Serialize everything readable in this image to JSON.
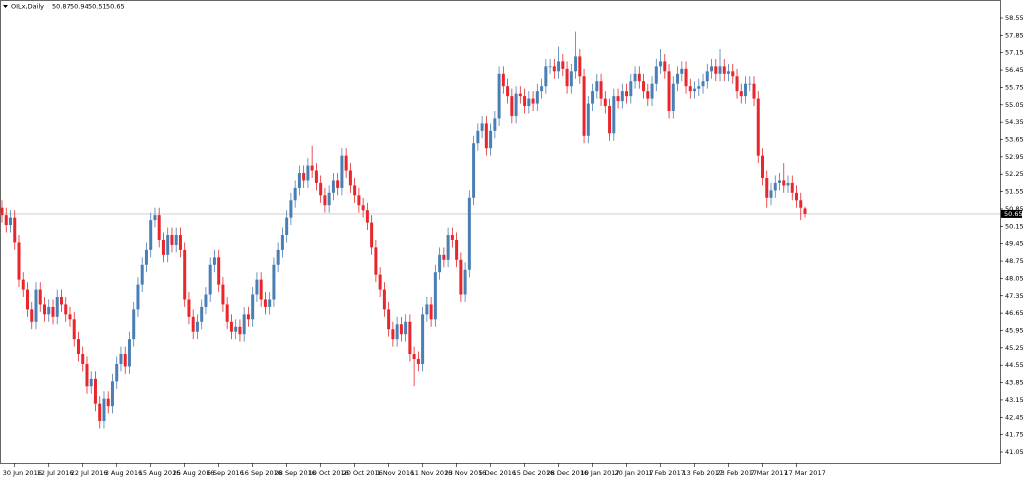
{
  "chart_data": {
    "type": "candlestick",
    "title": "OILx,Daily",
    "categories": [
      null,
      null,
      null,
      "30 Jun 2016",
      null,
      null,
      null,
      null,
      null,
      null,
      null,
      "12 Jul 2016",
      null,
      null,
      null,
      null,
      null,
      null,
      null,
      "22 Jul 2016",
      null,
      null,
      null,
      null,
      null,
      null,
      null,
      "3 Aug 2016",
      null,
      null,
      null,
      null,
      null,
      null,
      null,
      "15 Aug 2016",
      null,
      null,
      null,
      null,
      null,
      null,
      null,
      "25 Aug 2016",
      null,
      null,
      null,
      null,
      null,
      null,
      null,
      "6 Sep 2016",
      null,
      null,
      null,
      null,
      null,
      null,
      null,
      "16 Sep 2016",
      null,
      null,
      null,
      null,
      null,
      null,
      null,
      "28 Sep 2016",
      null,
      null,
      null,
      null,
      null,
      null,
      null,
      "10 Oct 2016",
      null,
      null,
      null,
      null,
      null,
      null,
      null,
      "20 Oct 2016",
      null,
      null,
      null,
      null,
      null,
      null,
      null,
      "1 Nov 2016",
      null,
      null,
      null,
      null,
      null,
      null,
      null,
      "11 Nov 2016",
      null,
      null,
      null,
      null,
      null,
      null,
      null,
      "23 Nov 2016",
      null,
      null,
      null,
      null,
      null,
      null,
      null,
      "5 Dec 2016",
      null,
      null,
      null,
      null,
      null,
      null,
      null,
      "15 Dec 2016",
      null,
      null,
      null,
      null,
      null,
      null,
      null,
      "28 Dec 2016",
      null,
      null,
      null,
      null,
      null,
      null,
      null,
      "10 Jan 2017",
      null,
      null,
      null,
      null,
      null,
      null,
      null,
      "20 Jan 2017",
      null,
      null,
      null,
      null,
      null,
      null,
      null,
      "1 Feb 2017",
      null,
      null,
      null,
      null,
      null,
      null,
      null,
      "13 Feb 2017",
      null,
      null,
      null,
      null,
      null,
      null,
      null,
      "23 Feb 2017",
      null,
      null,
      null,
      null,
      null,
      null,
      null,
      "7 Mar 2017",
      null,
      null,
      null,
      null,
      null,
      null,
      null,
      "17 Mar 2017",
      null,
      null
    ],
    "open": [
      50.9,
      50.6,
      50.2,
      50.5,
      49.5,
      48.0,
      47.6,
      46.8,
      46.3,
      47.6,
      47.0,
      46.6,
      46.9,
      46.5,
      47.3,
      47.0,
      46.6,
      46.4,
      45.6,
      45.0,
      44.6,
      43.7,
      44.0,
      43.0,
      42.3,
      43.2,
      42.9,
      43.9,
      44.6,
      45.0,
      44.5,
      45.6,
      46.8,
      47.8,
      48.6,
      49.2,
      50.4,
      50.6,
      49.6,
      49.0,
      49.8,
      49.4,
      49.8,
      49.2,
      47.2,
      46.5,
      45.9,
      46.3,
      46.9,
      47.4,
      48.6,
      48.9,
      47.8,
      47.0,
      46.3,
      45.9,
      46.1,
      45.8,
      46.6,
      46.4,
      47.4,
      48.0,
      47.2,
      46.9,
      47.2,
      48.6,
      49.2,
      49.8,
      50.5,
      51.2,
      51.7,
      52.3,
      52.0,
      52.6,
      52.4,
      51.9,
      51.4,
      51.0,
      51.5,
      52.0,
      51.7,
      53.0,
      52.4,
      51.8,
      51.4,
      51.0,
      50.8,
      50.3,
      49.3,
      48.2,
      47.6,
      46.8,
      46.0,
      45.6,
      46.2,
      45.8,
      46.3,
      45.0,
      44.8,
      44.6,
      46.6,
      47.0,
      46.4,
      48.3,
      49.0,
      48.8,
      49.8,
      49.6,
      48.8,
      47.4,
      48.4,
      51.3,
      53.5,
      54.0,
      54.3,
      53.3,
      54.0,
      54.5,
      56.3,
      55.8,
      55.4,
      54.6,
      55.5,
      55.4,
      55.0,
      55.3,
      55.1,
      55.6,
      55.8,
      56.6,
      56.6,
      56.4,
      56.8,
      56.5,
      55.8,
      56.4,
      57.0,
      56.2,
      53.8,
      55.1,
      55.6,
      56.0,
      55.3,
      55.0,
      53.9,
      55.4,
      55.2,
      55.6,
      55.4,
      56.0,
      56.3,
      56.0,
      55.6,
      55.3,
      55.9,
      56.6,
      56.8,
      56.4,
      54.8,
      55.9,
      56.3,
      56.5,
      55.8,
      55.6,
      55.7,
      55.8,
      56.0,
      56.4,
      56.6,
      56.3,
      56.6,
      56.3,
      56.4,
      56.2,
      55.6,
      55.4,
      55.9,
      55.9,
      55.3,
      53.0,
      52.1,
      51.3,
      51.6,
      51.9,
      52.0,
      51.8,
      51.9,
      51.5,
      51.2,
      50.87
    ],
    "high": [
      51.2,
      50.9,
      50.8,
      50.8,
      49.8,
      48.3,
      47.9,
      47.1,
      47.9,
      47.9,
      47.3,
      47.2,
      47.2,
      47.6,
      47.6,
      47.3,
      46.9,
      46.7,
      45.9,
      45.3,
      44.9,
      44.3,
      44.3,
      43.3,
      43.5,
      43.5,
      44.2,
      44.9,
      45.3,
      45.3,
      45.9,
      47.1,
      48.1,
      48.9,
      49.5,
      50.7,
      50.9,
      50.9,
      49.9,
      50.1,
      50.1,
      50.1,
      50.1,
      49.5,
      47.5,
      46.8,
      46.6,
      47.2,
      47.7,
      48.9,
      49.2,
      49.2,
      48.1,
      47.3,
      46.6,
      46.4,
      46.4,
      46.9,
      46.9,
      47.7,
      48.3,
      48.3,
      47.5,
      47.5,
      48.9,
      49.5,
      50.1,
      50.8,
      51.5,
      52.0,
      52.6,
      52.6,
      52.9,
      53.4,
      52.7,
      52.2,
      51.7,
      51.8,
      52.3,
      52.3,
      53.3,
      53.3,
      52.7,
      52.1,
      51.7,
      51.3,
      51.1,
      50.6,
      49.6,
      48.5,
      47.9,
      47.1,
      46.3,
      46.5,
      46.5,
      46.6,
      46.6,
      45.3,
      45.1,
      46.9,
      47.3,
      47.3,
      48.6,
      49.3,
      49.3,
      50.1,
      50.1,
      49.9,
      49.1,
      48.7,
      51.6,
      53.8,
      54.3,
      54.6,
      54.6,
      54.3,
      54.8,
      56.6,
      56.6,
      56.1,
      55.7,
      55.8,
      55.8,
      55.7,
      55.6,
      55.6,
      55.9,
      56.1,
      56.9,
      56.9,
      56.9,
      57.4,
      57.1,
      56.8,
      56.7,
      58.0,
      57.3,
      56.5,
      55.4,
      55.9,
      56.3,
      56.3,
      55.6,
      55.3,
      55.7,
      55.7,
      55.9,
      55.9,
      56.3,
      56.6,
      56.6,
      56.3,
      55.9,
      56.2,
      56.9,
      57.3,
      57.1,
      56.7,
      56.2,
      56.6,
      56.8,
      56.8,
      56.1,
      56.0,
      56.1,
      56.3,
      56.7,
      56.9,
      56.9,
      57.3,
      56.9,
      56.7,
      56.7,
      56.5,
      55.9,
      56.2,
      56.2,
      56.2,
      55.6,
      53.3,
      52.4,
      51.9,
      52.2,
      52.3,
      52.7,
      52.2,
      52.2,
      51.8,
      51.5,
      50.94
    ],
    "low": [
      50.3,
      49.9,
      49.9,
      49.2,
      47.7,
      47.3,
      46.5,
      46.0,
      46.0,
      46.7,
      46.3,
      46.3,
      46.2,
      46.2,
      46.7,
      46.3,
      46.1,
      45.3,
      44.7,
      44.3,
      43.4,
      43.4,
      42.7,
      42.0,
      42.0,
      42.6,
      42.6,
      43.6,
      44.3,
      44.2,
      44.2,
      45.3,
      46.5,
      47.5,
      48.3,
      48.9,
      50.1,
      49.3,
      48.7,
      48.7,
      49.1,
      49.1,
      48.9,
      46.9,
      46.2,
      45.6,
      45.6,
      46.0,
      46.6,
      47.1,
      48.3,
      47.5,
      46.7,
      46.0,
      45.6,
      45.6,
      45.5,
      45.5,
      46.1,
      46.1,
      47.1,
      46.9,
      46.6,
      46.6,
      46.9,
      48.3,
      48.9,
      49.5,
      50.2,
      50.9,
      51.4,
      51.7,
      51.7,
      52.1,
      51.6,
      51.1,
      50.7,
      50.7,
      51.2,
      51.4,
      51.4,
      52.1,
      51.5,
      51.1,
      50.7,
      50.5,
      50.0,
      49.0,
      47.9,
      47.3,
      46.5,
      45.7,
      45.3,
      45.3,
      45.5,
      45.5,
      44.7,
      43.7,
      44.3,
      44.3,
      46.3,
      46.1,
      46.1,
      48.0,
      48.5,
      48.5,
      49.3,
      48.5,
      47.1,
      47.1,
      48.1,
      51.0,
      53.2,
      53.7,
      53.0,
      53.0,
      53.7,
      54.2,
      55.5,
      55.1,
      54.3,
      54.3,
      55.1,
      54.7,
      54.7,
      54.8,
      54.8,
      55.3,
      55.5,
      56.3,
      56.1,
      56.1,
      56.2,
      55.5,
      55.5,
      56.1,
      55.9,
      53.5,
      53.5,
      54.8,
      55.3,
      55.0,
      54.7,
      53.6,
      53.6,
      54.9,
      54.9,
      55.1,
      55.1,
      55.7,
      55.7,
      55.3,
      55.0,
      55.0,
      55.6,
      56.3,
      56.1,
      54.5,
      54.5,
      55.6,
      56.0,
      55.5,
      55.3,
      55.3,
      55.4,
      55.5,
      55.7,
      56.1,
      56.0,
      56.0,
      56.0,
      56.0,
      55.9,
      55.3,
      55.1,
      55.1,
      55.6,
      55.0,
      52.7,
      51.8,
      50.9,
      51.0,
      51.3,
      51.6,
      51.5,
      51.5,
      51.2,
      50.9,
      50.4,
      50.51
    ],
    "close": [
      50.6,
      50.2,
      50.5,
      49.5,
      48.0,
      47.6,
      46.8,
      46.3,
      47.6,
      47.0,
      46.6,
      46.9,
      46.5,
      47.3,
      47.0,
      46.6,
      46.4,
      45.6,
      45.0,
      44.6,
      43.7,
      44.0,
      43.0,
      42.3,
      43.2,
      42.9,
      43.9,
      44.6,
      45.0,
      44.5,
      45.6,
      46.8,
      47.8,
      48.6,
      49.2,
      50.4,
      50.6,
      49.6,
      49.0,
      49.8,
      49.4,
      49.8,
      49.2,
      47.2,
      46.5,
      45.9,
      46.3,
      46.9,
      47.4,
      48.6,
      48.9,
      47.8,
      47.0,
      46.3,
      45.9,
      46.1,
      45.8,
      46.6,
      46.4,
      47.4,
      48.0,
      47.2,
      46.9,
      47.2,
      48.6,
      49.2,
      49.8,
      50.5,
      51.2,
      51.7,
      52.3,
      52.0,
      52.6,
      52.4,
      51.9,
      51.4,
      51.0,
      51.5,
      52.0,
      51.7,
      53.0,
      52.4,
      51.8,
      51.4,
      51.0,
      50.8,
      50.3,
      49.3,
      48.2,
      47.6,
      46.8,
      46.0,
      45.6,
      46.2,
      45.8,
      46.3,
      45.0,
      44.8,
      44.6,
      46.6,
      47.0,
      46.4,
      48.3,
      49.0,
      48.8,
      49.8,
      49.6,
      48.8,
      47.4,
      48.4,
      51.3,
      53.5,
      54.0,
      54.3,
      53.3,
      54.0,
      54.5,
      56.3,
      55.8,
      55.4,
      54.6,
      55.5,
      55.4,
      55.0,
      55.3,
      55.1,
      55.6,
      55.8,
      56.6,
      56.6,
      56.4,
      56.8,
      56.5,
      55.8,
      56.4,
      57.0,
      56.2,
      53.8,
      55.1,
      55.6,
      56.0,
      55.3,
      55.0,
      53.9,
      55.4,
      55.2,
      55.6,
      55.4,
      56.0,
      56.3,
      56.0,
      55.6,
      55.3,
      55.9,
      56.6,
      56.8,
      56.4,
      54.8,
      55.9,
      56.3,
      56.5,
      55.8,
      55.6,
      55.7,
      55.8,
      56.0,
      56.4,
      56.6,
      56.3,
      56.6,
      56.3,
      56.4,
      56.2,
      55.6,
      55.4,
      55.9,
      55.9,
      55.3,
      53.0,
      52.1,
      51.3,
      51.6,
      51.9,
      52.0,
      51.8,
      51.9,
      51.5,
      51.2,
      50.9,
      50.65
    ],
    "up_color": "#4a7fb5",
    "down_color": "#e8262b",
    "price_line_color": "#c8c8c8",
    "ylim": [
      41.05,
      58.55
    ],
    "yticks": [
      58.55,
      57.85,
      57.15,
      56.45,
      55.75,
      55.05,
      54.35,
      53.65,
      52.95,
      52.25,
      51.55,
      50.85,
      50.15,
      49.45,
      48.75,
      48.05,
      47.35,
      46.65,
      45.95,
      45.25,
      44.55,
      43.85,
      43.15,
      42.45,
      41.75,
      41.05
    ]
  }
}
